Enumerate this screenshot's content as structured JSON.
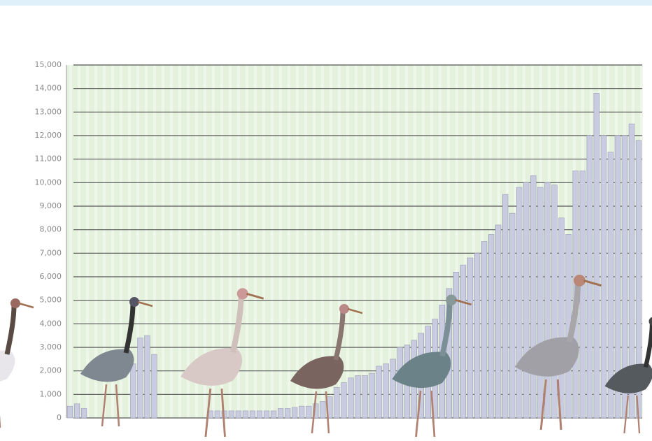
{
  "chart_data": {
    "type": "bar",
    "categories": [
      null,
      null,
      null,
      null,
      null,
      null,
      null,
      null,
      null,
      null,
      null,
      null,
      null,
      null,
      null,
      null,
      null,
      null,
      null,
      null,
      null,
      null,
      null,
      null,
      null,
      null,
      null,
      null,
      null,
      null,
      null,
      null,
      null,
      null,
      null,
      null,
      null,
      null,
      null,
      null,
      null,
      null,
      null,
      null,
      null,
      null,
      null,
      null,
      null,
      null,
      null,
      null,
      null,
      null,
      null,
      null,
      null,
      null,
      null,
      null,
      null,
      null,
      null,
      null,
      null,
      null,
      null,
      null,
      null,
      null,
      null,
      null,
      null,
      null,
      null,
      null,
      null,
      null,
      null,
      null,
      null,
      null
    ],
    "values": [
      500,
      600,
      400,
      0,
      0,
      0,
      0,
      0,
      0,
      2300,
      3400,
      3500,
      2700,
      0,
      0,
      0,
      0,
      0,
      0,
      0,
      300,
      300,
      300,
      300,
      300,
      300,
      300,
      300,
      300,
      300,
      400,
      400,
      450,
      500,
      500,
      600,
      700,
      900,
      1300,
      1500,
      1700,
      1800,
      1800,
      1900,
      2200,
      2300,
      2500,
      3000,
      3100,
      3300,
      3600,
      3900,
      4200,
      4800,
      5500,
      6200,
      6500,
      6800,
      7000,
      7500,
      7800,
      8200,
      9500,
      8700,
      9800,
      10000,
      10300,
      9800,
      10000,
      9900,
      8500,
      7800,
      10500,
      10500,
      12000,
      13800,
      12000,
      11300,
      12000,
      12000,
      12500,
      11800
    ],
    "color": "#c9cbe0",
    "ylim": [
      0,
      15000
    ],
    "yticks": [
      0,
      {
        "value": 1000,
        "label": "1,000"
      },
      {
        "value": 2000,
        "label": "2,000"
      },
      {
        "value": 3000,
        "label": "3,000"
      },
      {
        "value": 4000,
        "label": "4,000"
      },
      {
        "value": 5000,
        "label": "5,000"
      },
      {
        "value": 6000,
        "label": "6,000"
      },
      {
        "value": 7000,
        "label": "7,000"
      },
      {
        "value": 8000,
        "label": "8,000"
      },
      {
        "value": 9000,
        "label": "9,000"
      },
      {
        "value": 10000,
        "label": "10,000"
      },
      {
        "value": 11000,
        "label": "11,000"
      },
      {
        "value": 12000,
        "label": "12,000"
      },
      {
        "value": 13000,
        "label": "13,000"
      },
      {
        "value": 14000,
        "label": "14,000"
      },
      {
        "value": 15000,
        "label": "15,000"
      }
    ],
    "grid": true
  }
}
